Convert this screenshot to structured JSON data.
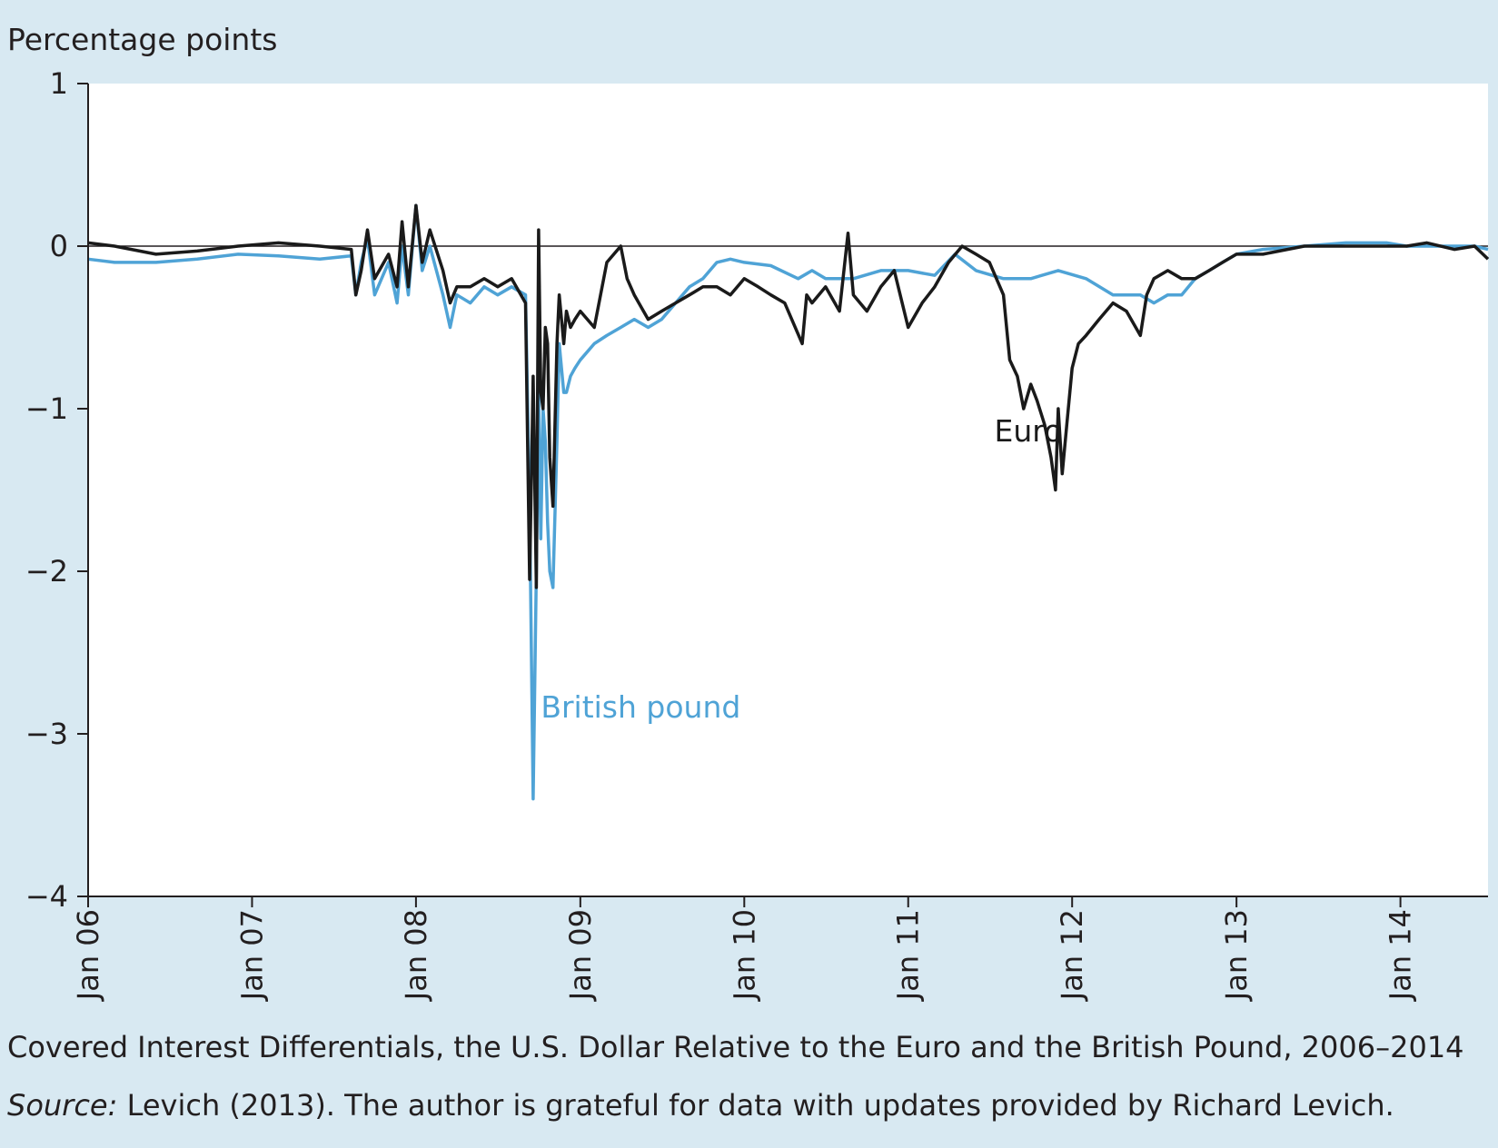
{
  "chart_data": {
    "type": "line",
    "title": "Covered Interest Differentials, the U.S. Dollar Relative to the Euro and the British Pound, 2006–2014",
    "source_label": "Source:",
    "source_text": " Levich (2013). The author is grateful for data with updates provided by Richard Levich.",
    "ylabel": "Percentage points",
    "xlabel": "",
    "ylim": [
      -4,
      1
    ],
    "yticks": [
      1,
      0,
      -1,
      -2,
      -3,
      -4
    ],
    "ytick_labels": [
      "1",
      "0",
      "−1",
      "−2",
      "−3",
      "−4"
    ],
    "xlim": [
      "2006-01-01",
      "2014-07-15"
    ],
    "xticks": [
      "2006-01-01",
      "2007-01-01",
      "2008-01-01",
      "2009-01-01",
      "2010-01-01",
      "2011-01-01",
      "2012-01-01",
      "2013-01-01",
      "2014-01-01"
    ],
    "xtick_labels": [
      "Jan 06",
      "Jan 07",
      "Jan 08",
      "Jan 09",
      "Jan 10",
      "Jan 11",
      "Jan 12",
      "Jan 13",
      "Jan 14"
    ],
    "grid": false,
    "reference_line_y": 0,
    "series": [
      {
        "name": "Euro",
        "color": "#1a1a1a",
        "x": [
          "2006-01-01",
          "2006-03-01",
          "2006-06-01",
          "2006-09-01",
          "2006-12-01",
          "2007-03-01",
          "2007-06-01",
          "2007-08-10",
          "2007-08-20",
          "2007-09-01",
          "2007-09-15",
          "2007-10-01",
          "2007-11-01",
          "2007-11-20",
          "2007-12-01",
          "2007-12-15",
          "2008-01-01",
          "2008-01-15",
          "2008-02-01",
          "2008-03-01",
          "2008-03-17",
          "2008-04-01",
          "2008-05-01",
          "2008-06-01",
          "2008-07-01",
          "2008-08-01",
          "2008-09-01",
          "2008-09-10",
          "2008-09-18",
          "2008-09-25",
          "2008-09-30",
          "2008-10-05",
          "2008-10-10",
          "2008-10-15",
          "2008-10-20",
          "2008-10-25",
          "2008-11-01",
          "2008-11-10",
          "2008-11-15",
          "2008-11-25",
          "2008-12-01",
          "2008-12-10",
          "2008-12-20",
          "2009-01-01",
          "2009-02-01",
          "2009-03-01",
          "2009-04-01",
          "2009-04-15",
          "2009-05-01",
          "2009-06-01",
          "2009-07-01",
          "2009-08-01",
          "2009-09-01",
          "2009-10-01",
          "2009-11-01",
          "2009-12-01",
          "2010-01-01",
          "2010-02-01",
          "2010-03-01",
          "2010-04-01",
          "2010-05-10",
          "2010-05-20",
          "2010-06-01",
          "2010-07-01",
          "2010-08-01",
          "2010-08-20",
          "2010-09-01",
          "2010-10-01",
          "2010-11-01",
          "2010-12-01",
          "2011-01-01",
          "2011-02-01",
          "2011-03-01",
          "2011-04-01",
          "2011-05-01",
          "2011-06-01",
          "2011-07-01",
          "2011-08-01",
          "2011-08-15",
          "2011-09-01",
          "2011-09-15",
          "2011-10-01",
          "2011-10-15",
          "2011-11-01",
          "2011-11-15",
          "2011-11-25",
          "2011-12-01",
          "2011-12-10",
          "2011-12-20",
          "2012-01-01",
          "2012-01-15",
          "2012-02-01",
          "2012-03-01",
          "2012-04-01",
          "2012-05-01",
          "2012-06-01",
          "2012-06-15",
          "2012-07-01",
          "2012-08-01",
          "2012-09-01",
          "2012-10-01",
          "2012-11-01",
          "2012-12-01",
          "2013-01-01",
          "2013-03-01",
          "2013-06-01",
          "2013-09-01",
          "2013-12-01",
          "2014-01-15",
          "2014-03-01",
          "2014-05-01",
          "2014-06-15",
          "2014-07-15"
        ],
        "values": [
          0.02,
          0.0,
          -0.05,
          -0.03,
          0.0,
          0.02,
          0.0,
          -0.02,
          -0.3,
          -0.15,
          0.1,
          -0.2,
          -0.05,
          -0.25,
          0.15,
          -0.25,
          0.25,
          -0.1,
          0.1,
          -0.15,
          -0.35,
          -0.25,
          -0.25,
          -0.2,
          -0.25,
          -0.2,
          -0.35,
          -2.05,
          -0.8,
          -2.1,
          0.1,
          -0.9,
          -1.0,
          -0.5,
          -0.6,
          -1.3,
          -1.6,
          -0.6,
          -0.3,
          -0.6,
          -0.4,
          -0.5,
          -0.45,
          -0.4,
          -0.5,
          -0.1,
          0.0,
          -0.2,
          -0.3,
          -0.45,
          -0.4,
          -0.35,
          -0.3,
          -0.25,
          -0.25,
          -0.3,
          -0.2,
          -0.25,
          -0.3,
          -0.35,
          -0.6,
          -0.3,
          -0.35,
          -0.25,
          -0.4,
          0.08,
          -0.3,
          -0.4,
          -0.25,
          -0.15,
          -0.5,
          -0.35,
          -0.25,
          -0.1,
          0.0,
          -0.05,
          -0.1,
          -0.3,
          -0.7,
          -0.8,
          -1.0,
          -0.85,
          -0.95,
          -1.1,
          -1.3,
          -1.5,
          -1.0,
          -1.4,
          -1.1,
          -0.75,
          -0.6,
          -0.55,
          -0.45,
          -0.35,
          -0.4,
          -0.55,
          -0.3,
          -0.2,
          -0.15,
          -0.2,
          -0.2,
          -0.15,
          -0.1,
          -0.05,
          -0.05,
          0.0,
          0.0,
          0.0,
          0.0,
          0.02,
          -0.02,
          0.0,
          -0.08
        ]
      },
      {
        "name": "British pound",
        "color": "#4fa3d6",
        "x": [
          "2006-01-01",
          "2006-03-01",
          "2006-06-01",
          "2006-09-01",
          "2006-12-01",
          "2007-03-01",
          "2007-06-01",
          "2007-08-10",
          "2007-08-20",
          "2007-09-01",
          "2007-09-15",
          "2007-10-01",
          "2007-11-01",
          "2007-11-20",
          "2007-12-01",
          "2007-12-15",
          "2008-01-01",
          "2008-01-15",
          "2008-02-01",
          "2008-03-01",
          "2008-03-17",
          "2008-04-01",
          "2008-05-01",
          "2008-06-01",
          "2008-07-01",
          "2008-08-01",
          "2008-09-01",
          "2008-09-10",
          "2008-09-18",
          "2008-09-25",
          "2008-09-30",
          "2008-10-05",
          "2008-10-10",
          "2008-10-15",
          "2008-10-20",
          "2008-10-25",
          "2008-11-01",
          "2008-11-10",
          "2008-11-15",
          "2008-11-25",
          "2008-12-01",
          "2008-12-10",
          "2008-12-20",
          "2009-01-01",
          "2009-02-01",
          "2009-03-01",
          "2009-04-01",
          "2009-05-01",
          "2009-06-01",
          "2009-07-01",
          "2009-08-01",
          "2009-09-01",
          "2009-10-01",
          "2009-11-01",
          "2009-12-01",
          "2010-01-01",
          "2010-03-01",
          "2010-05-01",
          "2010-06-01",
          "2010-07-01",
          "2010-09-01",
          "2010-11-01",
          "2011-01-01",
          "2011-03-01",
          "2011-04-15",
          "2011-06-01",
          "2011-08-01",
          "2011-10-01",
          "2011-12-01",
          "2012-02-01",
          "2012-04-01",
          "2012-06-01",
          "2012-07-01",
          "2012-08-01",
          "2012-09-01",
          "2012-10-01",
          "2012-11-01",
          "2012-12-01",
          "2013-01-01",
          "2013-03-01",
          "2013-06-01",
          "2013-09-01",
          "2013-12-01",
          "2014-01-15",
          "2014-03-01",
          "2014-05-01",
          "2014-06-15",
          "2014-07-15"
        ],
        "values": [
          -0.08,
          -0.1,
          -0.1,
          -0.08,
          -0.05,
          -0.06,
          -0.08,
          -0.06,
          -0.3,
          -0.1,
          0.05,
          -0.3,
          -0.1,
          -0.35,
          0.0,
          -0.3,
          0.25,
          -0.15,
          0.0,
          -0.3,
          -0.5,
          -0.3,
          -0.35,
          -0.25,
          -0.3,
          -0.25,
          -0.3,
          -1.6,
          -3.4,
          -2.0,
          -0.9,
          -1.8,
          -1.0,
          -1.2,
          -1.7,
          -2.0,
          -2.1,
          -1.2,
          -0.6,
          -0.9,
          -0.9,
          -0.8,
          -0.75,
          -0.7,
          -0.6,
          -0.55,
          -0.5,
          -0.45,
          -0.5,
          -0.45,
          -0.35,
          -0.25,
          -0.2,
          -0.1,
          -0.08,
          -0.1,
          -0.12,
          -0.2,
          -0.15,
          -0.2,
          -0.2,
          -0.15,
          -0.15,
          -0.18,
          -0.05,
          -0.15,
          -0.2,
          -0.2,
          -0.15,
          -0.2,
          -0.3,
          -0.3,
          -0.35,
          -0.3,
          -0.3,
          -0.2,
          -0.15,
          -0.1,
          -0.05,
          -0.02,
          0.0,
          0.02,
          0.02,
          0.0,
          0.0,
          0.0,
          0.0,
          -0.02
        ]
      }
    ],
    "annotations": [
      {
        "text": "Euro",
        "x": "2011-12-10",
        "y": -1.2,
        "color": "#1a1a1a"
      },
      {
        "text": "British pound",
        "x": "2008-10-05",
        "y": -2.9,
        "color": "#4fa3d6"
      }
    ]
  }
}
